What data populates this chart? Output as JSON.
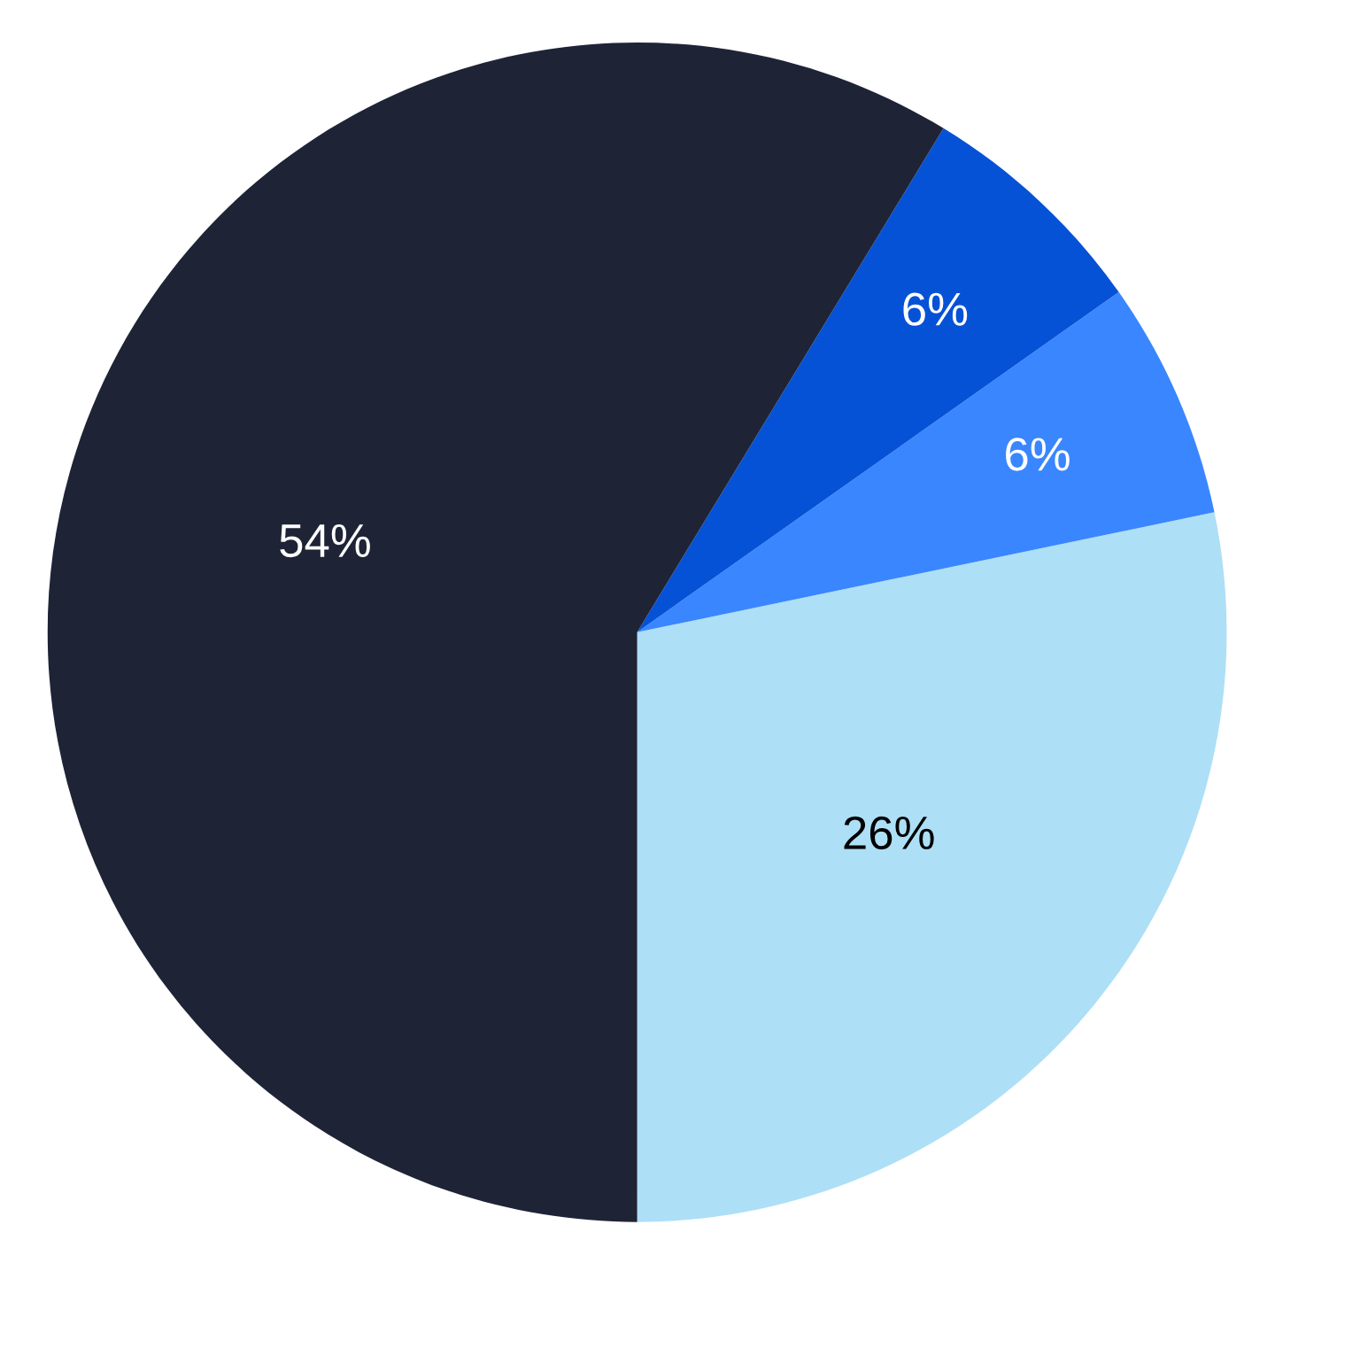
{
  "chart_data": {
    "type": "pie",
    "categories": [
      null,
      null,
      null,
      null
    ],
    "values": [
      26,
      6,
      6,
      54
    ],
    "colors": [
      "#addff7",
      "#3a86ff",
      "#0652d6",
      "#1e2436"
    ],
    "value_labels": [
      "26%",
      "6%",
      "6%",
      "54%"
    ]
  }
}
